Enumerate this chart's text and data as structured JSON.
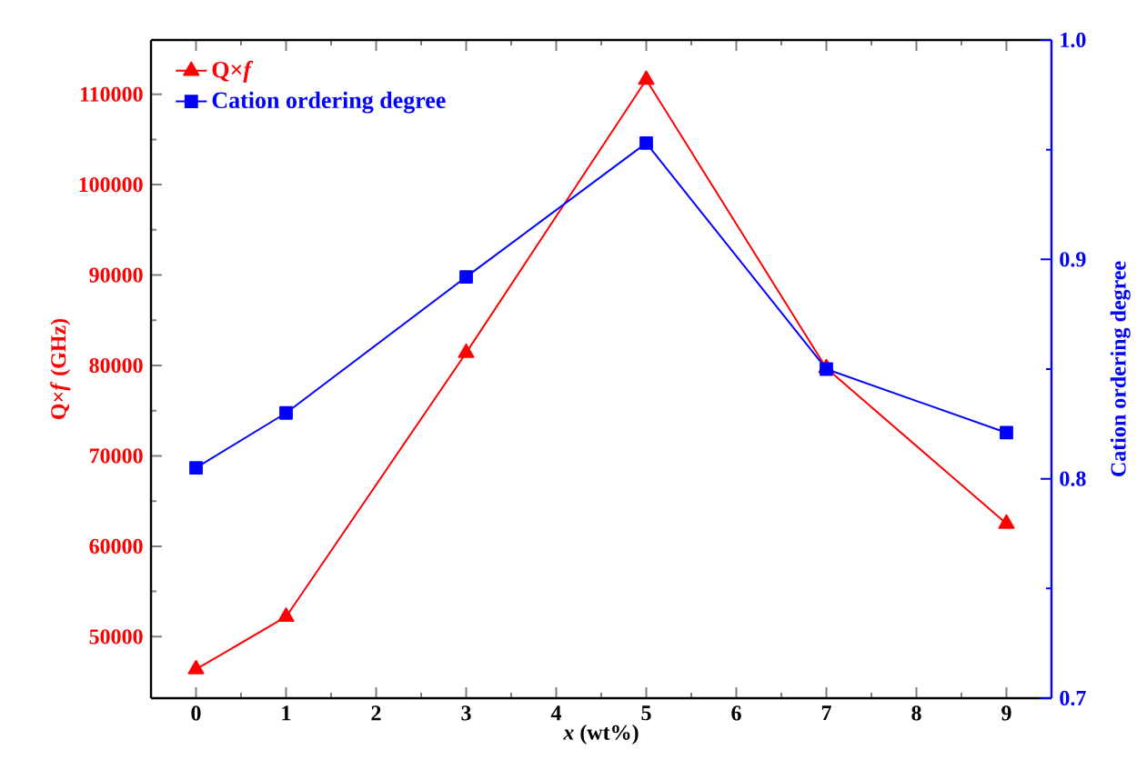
{
  "chart_data": {
    "type": "line",
    "xlabel": "*x* (wt%)",
    "ylabel": "Q×*f* (GHz)",
    "y2label": "Cation ordering degree",
    "x": [
      0,
      1,
      3,
      5,
      7,
      9
    ],
    "series": [
      {
        "name": "Q×*f*",
        "color": "#ff0000",
        "marker": "triangle",
        "values": [
          46400,
          52200,
          81400,
          111600,
          79700,
          62500
        ]
      },
      {
        "name": "Cation ordering degree",
        "color": "#0000ff",
        "marker": "square",
        "axis": "y2",
        "values": [
          0.805,
          0.83,
          0.892,
          0.953,
          0.85,
          0.821
        ]
      }
    ],
    "xlim": [
      -0.5,
      9.5
    ],
    "xticks": [
      0,
      1,
      2,
      3,
      4,
      5,
      6,
      7,
      8,
      9
    ],
    "ylim": [
      43200,
      116000
    ],
    "yticks": [
      50000,
      60000,
      70000,
      80000,
      90000,
      100000,
      110000
    ],
    "y2lim": [
      0.7,
      1.0
    ],
    "y2ticks": [
      {
        "value": 0.7,
        "label": "0.7"
      },
      {
        "value": 0.8,
        "label": "0.8"
      },
      {
        "value": 0.9,
        "label": "0.9"
      },
      {
        "value": 1.0,
        "label": "1.0"
      }
    ],
    "legend": "top left",
    "grid": false,
    "line_style": "solid"
  }
}
